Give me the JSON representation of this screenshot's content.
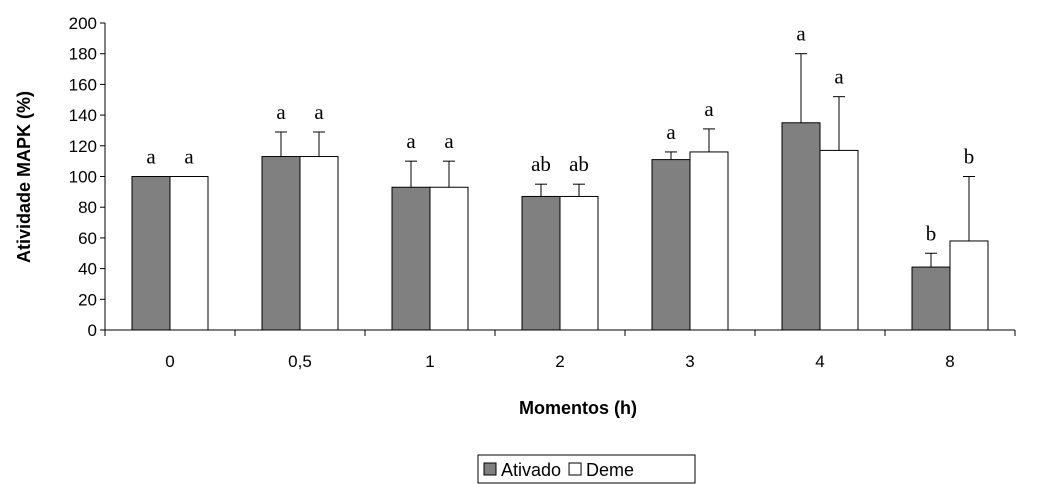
{
  "chart_data": {
    "type": "bar",
    "xlabel": "Momentos (h)",
    "ylabel": "Atividade MAPK (%)",
    "ylim": [
      0,
      200
    ],
    "yticks": [
      0,
      20,
      40,
      60,
      80,
      100,
      120,
      140,
      160,
      180,
      200
    ],
    "categories": [
      "0",
      "0,5",
      "1",
      "2",
      "3",
      "4",
      "8"
    ],
    "series": [
      {
        "name": "Ativado",
        "color": "#808080",
        "values": [
          100,
          113,
          93,
          87,
          111,
          135,
          41
        ],
        "error": [
          0,
          16,
          17,
          8,
          5,
          45,
          9
        ],
        "labels": [
          "a",
          "a",
          "a",
          "ab",
          "a",
          "a",
          "b"
        ]
      },
      {
        "name": "Deme",
        "color": "#ffffff",
        "values": [
          100,
          113,
          93,
          87,
          116,
          117,
          58
        ],
        "error": [
          0,
          16,
          17,
          8,
          15,
          35,
          42
        ],
        "labels": [
          "a",
          "a",
          "a",
          "ab",
          "a",
          "a",
          "b"
        ]
      }
    ],
    "legend_position": "bottom-center",
    "grid": false
  }
}
